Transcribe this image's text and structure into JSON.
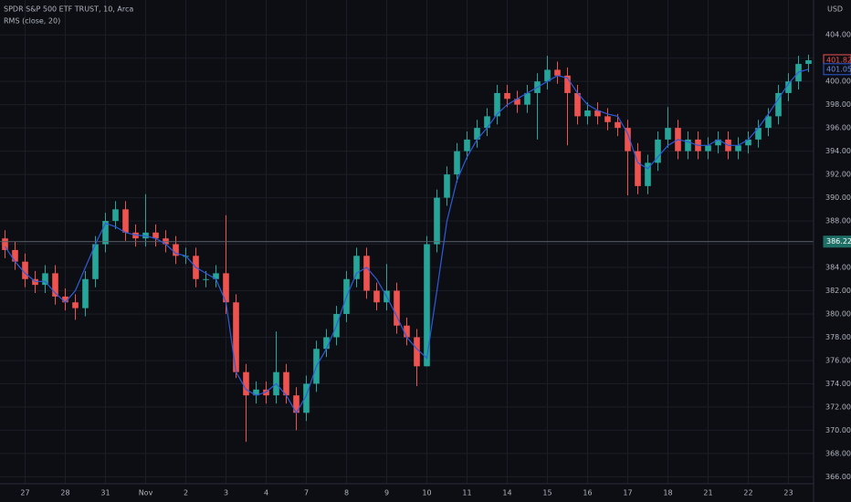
{
  "chart_data": {
    "type": "candlestick",
    "title": "SPDR S&P 500 ETF TRUST, 10, Arca",
    "y_unit_label": "USD",
    "categories": [
      null,
      null,
      "27",
      null,
      null,
      null,
      "28",
      null,
      null,
      null,
      "31",
      null,
      null,
      null,
      "Nov",
      null,
      null,
      null,
      "2",
      null,
      null,
      null,
      "3",
      null,
      null,
      null,
      "4",
      null,
      null,
      null,
      "7",
      null,
      null,
      null,
      "8",
      null,
      null,
      null,
      "9",
      null,
      null,
      null,
      "10",
      null,
      null,
      null,
      "11",
      null,
      null,
      null,
      "14",
      null,
      null,
      null,
      "15",
      null,
      null,
      null,
      "16",
      null,
      null,
      null,
      "17",
      null,
      null,
      null,
      "18",
      null,
      null,
      null,
      "21",
      null,
      null,
      null,
      "22",
      null,
      null,
      null,
      "23",
      null,
      null
    ],
    "ohlc": {
      "up_color": "#26a69a",
      "down_color": "#ef5350",
      "open": [
        386.5,
        385.5,
        384.5,
        383,
        382.5,
        383.5,
        381.5,
        381,
        380.5,
        383,
        386,
        388,
        389,
        387,
        386.5,
        387,
        386.5,
        386,
        385,
        385,
        383,
        383,
        383.5,
        381,
        375,
        373,
        373.5,
        373,
        375,
        373,
        371.5,
        374,
        377,
        378,
        380,
        383,
        385,
        382,
        381,
        382,
        379,
        378,
        375.5,
        386,
        390,
        392,
        394,
        395,
        396,
        397,
        399,
        398.5,
        398,
        399,
        400,
        401,
        400.5,
        399,
        397,
        397.5,
        397,
        396.5,
        396,
        394,
        391,
        393,
        395,
        396,
        394,
        395,
        394,
        394.5,
        395,
        394,
        394.5,
        395,
        396,
        397,
        399,
        400,
        401.5
      ],
      "high": [
        387.2,
        386.2,
        385.2,
        383.7,
        384.2,
        384.2,
        382.2,
        381.7,
        383.7,
        386.7,
        388.7,
        389.7,
        389.7,
        387.7,
        390.3,
        387.7,
        387.2,
        386.7,
        385.7,
        385.7,
        383.7,
        384.2,
        388.5,
        381.7,
        375.7,
        374.2,
        374.2,
        378.5,
        375.7,
        373.7,
        374.7,
        377.7,
        378.7,
        380.7,
        383.7,
        385.7,
        385.7,
        382.7,
        384.3,
        382.7,
        379.7,
        378.7,
        386.7,
        390.7,
        392.7,
        394.7,
        395.7,
        396.7,
        397.7,
        399.7,
        399.7,
        399.2,
        399.7,
        400.7,
        402.2,
        401.7,
        401.2,
        399.7,
        398.2,
        398.2,
        397.7,
        397.2,
        396.7,
        394.7,
        393.7,
        395.7,
        397.8,
        396.7,
        395.7,
        395.7,
        395.2,
        395.7,
        395.7,
        395.2,
        395.7,
        396.7,
        397.7,
        399.7,
        400.7,
        402.2,
        402.3
      ],
      "low": [
        384.8,
        383.8,
        382.3,
        381.8,
        381.8,
        380.8,
        380.3,
        379.5,
        379.8,
        382.3,
        385.3,
        387.3,
        386.3,
        385.8,
        385.8,
        385.8,
        385.3,
        384.3,
        384.3,
        382.3,
        382.3,
        382.3,
        380,
        374.5,
        369,
        372.3,
        372.3,
        372.3,
        372.3,
        370,
        370.8,
        373.3,
        376.3,
        377.3,
        379.3,
        382.3,
        381.3,
        380.3,
        380.3,
        378.3,
        377.3,
        373.8,
        375.5,
        385.3,
        389.3,
        391.3,
        393.3,
        394.3,
        395.3,
        396.3,
        397.8,
        397.3,
        397.3,
        395,
        399.3,
        399.8,
        394.5,
        396.3,
        396.3,
        396.3,
        395.8,
        395.3,
        390.2,
        390.3,
        390.3,
        392.3,
        394.3,
        393.3,
        393.3,
        393.3,
        393.3,
        393.8,
        393.3,
        393.3,
        393.8,
        394.3,
        395.3,
        396.3,
        398.3,
        399.3,
        400.8
      ],
      "close": [
        385.5,
        384.5,
        383,
        382.5,
        383.5,
        381.5,
        381,
        380.5,
        383,
        386,
        388,
        389,
        387,
        386.5,
        387,
        386.5,
        386,
        385,
        385,
        383,
        383,
        383.5,
        381,
        375,
        373,
        373.5,
        373,
        375,
        373,
        371.5,
        374,
        377,
        378,
        380,
        383,
        385,
        382,
        381,
        382,
        379,
        378,
        375.5,
        386,
        390,
        392,
        394,
        395,
        396,
        397,
        399,
        398.5,
        398,
        399,
        400,
        401,
        400.5,
        399,
        397,
        397.5,
        397,
        396.5,
        396,
        394,
        391,
        393,
        395,
        396,
        394,
        395,
        394,
        394.5,
        395,
        394,
        394.5,
        395,
        396,
        397,
        399,
        400,
        401.5,
        401.82
      ]
    },
    "series": [
      {
        "name": "RMS (close, 20)",
        "color": "#2f5bd8",
        "values": [
          385.8,
          384.5,
          383.5,
          382.8,
          382.8,
          381.8,
          381,
          382,
          384,
          386,
          387.8,
          387.5,
          387,
          386.8,
          386.7,
          386.5,
          386,
          385.2,
          385,
          384,
          383.5,
          383,
          381,
          375,
          373.5,
          373,
          373.3,
          374,
          373,
          371.5,
          373,
          375.5,
          377,
          379,
          381.5,
          383.5,
          384,
          383,
          381.5,
          379.8,
          378,
          377,
          376.2,
          382,
          388,
          391.5,
          393.5,
          395,
          396,
          397.2,
          398,
          398.5,
          399,
          399.5,
          400,
          400.5,
          400.3,
          399,
          398,
          397.5,
          397.2,
          397,
          395.5,
          393,
          392.5,
          393.5,
          394.5,
          395,
          394.8,
          394.5,
          394.5,
          395,
          394.5,
          394.5,
          395,
          396,
          397.2,
          398.5,
          399.8,
          400.8,
          401.05
        ]
      }
    ],
    "reference_line": 386.22,
    "ylim": [
      365.4,
      407
    ],
    "yticks": [
      {
        "value": 366,
        "label": "366.00"
      },
      {
        "value": 368,
        "label": "368.00"
      },
      {
        "value": 370,
        "label": "370.00"
      },
      {
        "value": 372,
        "label": "372.00"
      },
      {
        "value": 374,
        "label": "374.00"
      },
      {
        "value": 376,
        "label": "376.00"
      },
      {
        "value": 378,
        "label": "378.00"
      },
      {
        "value": 380,
        "label": "380.00"
      },
      {
        "value": 382,
        "label": "382.00"
      },
      {
        "value": 384,
        "label": "384.00"
      },
      {
        "value": 386,
        "label": "386.00"
      },
      {
        "value": 388,
        "label": "388.00"
      },
      {
        "value": 390,
        "label": "390.00"
      },
      {
        "value": 392,
        "label": "392.00"
      },
      {
        "value": 394,
        "label": "394.00"
      },
      {
        "value": 396,
        "label": "396.00"
      },
      {
        "value": 398,
        "label": "398.00"
      },
      {
        "value": 400,
        "label": "400.00"
      },
      {
        "value": 402,
        "label": "402.00"
      },
      {
        "value": 404,
        "label": "404.00"
      }
    ],
    "grid": true
  }
}
